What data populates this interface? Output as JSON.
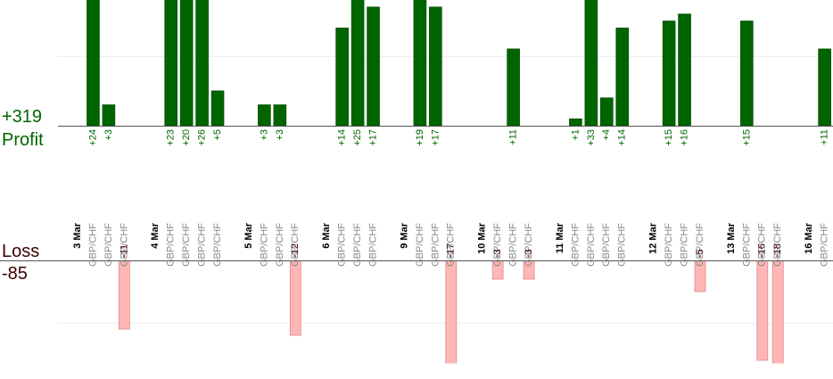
{
  "chart_data": {
    "type": "bar",
    "profit": {
      "label": "Profit",
      "total": "+319"
    },
    "loss": {
      "label": "Loss",
      "total": "-85"
    },
    "ylim": [
      0,
      18
    ],
    "yticks": [
      10
    ],
    "loss_ylim": [
      -16.5,
      0
    ],
    "loss_yticks": [
      -10
    ],
    "grid": true,
    "profit_color": "#006400",
    "loss_color": "#ffb6b6",
    "groups": [
      {
        "date": "3 Mar",
        "trades": [
          {
            "pair": "GBP/CHF",
            "value": 24,
            "value_label": "+24"
          },
          {
            "pair": "GBP/CHF",
            "value": 3,
            "value_label": "+3"
          },
          {
            "pair": "GBP/CHF",
            "value": -11
          }
        ]
      },
      {
        "date": "4 Mar",
        "trades": [
          {
            "pair": "GBP/CHF",
            "value": 23,
            "value_label": "+23"
          },
          {
            "pair": "GBP/CHF",
            "value": 20,
            "value_label": "+20"
          },
          {
            "pair": "GBP/CHF",
            "value": 26,
            "value_label": "+26"
          },
          {
            "pair": "GBP/CHF",
            "value": 5,
            "value_label": "+5"
          }
        ]
      },
      {
        "date": "5 Mar",
        "trades": [
          {
            "pair": "GBP/CHF",
            "value": 3,
            "value_label": "+3"
          },
          {
            "pair": "GBP/CHF",
            "value": 3,
            "value_label": "+3"
          },
          {
            "pair": "GBP/CHF",
            "value": -12
          }
        ]
      },
      {
        "date": "6 Mar",
        "trades": [
          {
            "pair": "GBP/CHF",
            "value": 14,
            "value_label": "+14"
          },
          {
            "pair": "GBP/CHF",
            "value": 25,
            "value_label": "+25"
          },
          {
            "pair": "GBP/CHF",
            "value": 17,
            "value_label": "+17"
          }
        ]
      },
      {
        "date": "9 Mar",
        "trades": [
          {
            "pair": "GBP/CHF",
            "value": 19,
            "value_label": "+19"
          },
          {
            "pair": "GBP/CHF",
            "value": 17,
            "value_label": "+17"
          },
          {
            "pair": "GBP/CHF",
            "value": -17
          }
        ]
      },
      {
        "date": "10 Mar",
        "trades": [
          {
            "pair": "GBP/CHF",
            "value": -3
          },
          {
            "pair": "GBP/CHF",
            "value": 11,
            "value_label": "+11"
          },
          {
            "pair": "GBP/CHF",
            "value": -3
          }
        ]
      },
      {
        "date": "11 Mar",
        "trades": [
          {
            "pair": "GBP/CHF",
            "value": 1,
            "value_label": "+1"
          },
          {
            "pair": "GBP/CHF",
            "value": 33,
            "value_label": "+33"
          },
          {
            "pair": "GBP/CHF",
            "value": 4,
            "value_label": "+4"
          },
          {
            "pair": "GBP/CHF",
            "value": 14,
            "value_label": "+14"
          }
        ]
      },
      {
        "date": "12 Mar",
        "trades": [
          {
            "pair": "GBP/CHF",
            "value": 15,
            "value_label": "+15"
          },
          {
            "pair": "GBP/CHF",
            "value": 16,
            "value_label": "+16"
          },
          {
            "pair": "GBP/CHF",
            "value": -5
          }
        ]
      },
      {
        "date": "13 Mar",
        "trades": [
          {
            "pair": "GBP/CHF",
            "value": 15,
            "value_label": "+15"
          },
          {
            "pair": "GBP/CHF",
            "value": -16
          },
          {
            "pair": "GBP/CHF",
            "value": -18
          }
        ]
      },
      {
        "date": "16 Mar",
        "trades": [
          {
            "pair": "GBP/CHF",
            "value": 11,
            "value_label": "+11"
          }
        ]
      }
    ]
  }
}
